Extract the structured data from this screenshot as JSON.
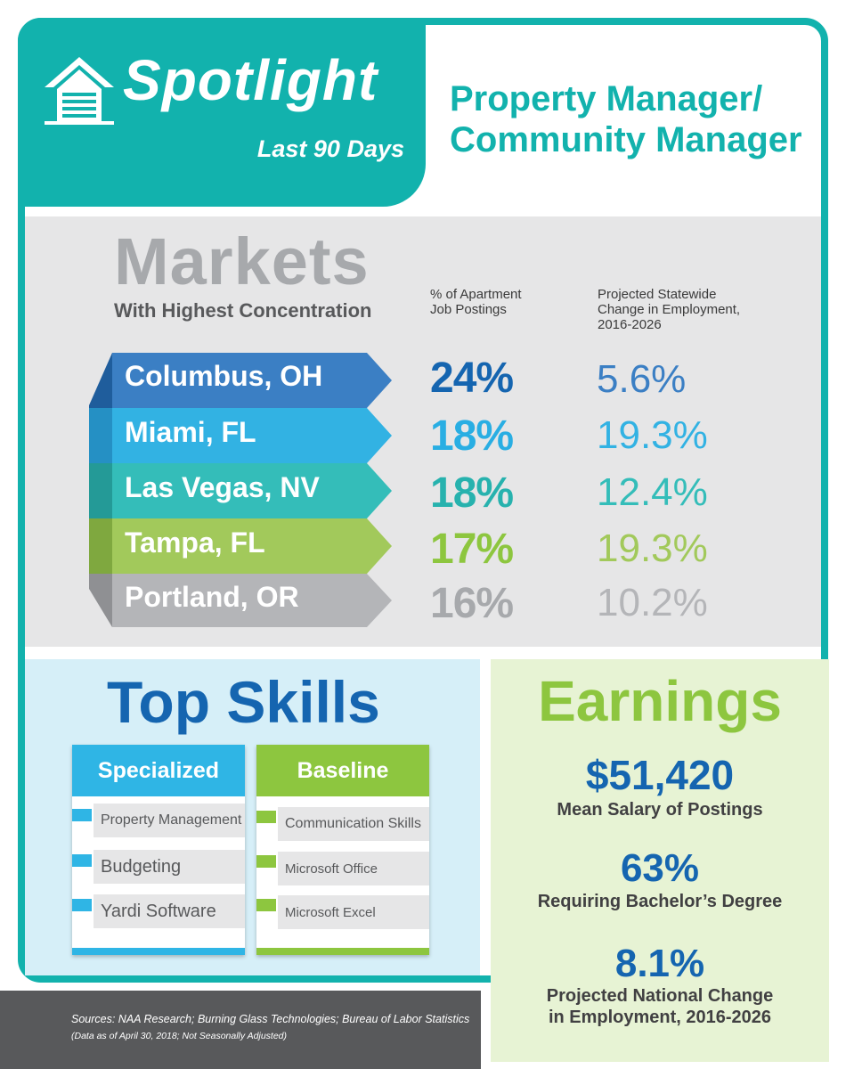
{
  "header": {
    "spotlight": "Spotlight",
    "period": "Last 90 Days",
    "job_title_line1": "Property Manager/",
    "job_title_line2": "Community Manager"
  },
  "markets": {
    "title": "Markets",
    "subtitle": "With Highest Concentration",
    "col_postings": [
      "% of Apartment",
      "Job Postings"
    ],
    "col_change": [
      "Projected Statewide",
      "Change in Employment,",
      "2016-2026"
    ],
    "rows": [
      {
        "city": "Columbus, OH",
        "pct": "24%",
        "change": "5.6%"
      },
      {
        "city": "Miami, FL",
        "pct": "18%",
        "change": "19.3%"
      },
      {
        "city": "Las Vegas, NV",
        "pct": "18%",
        "change": "12.4%"
      },
      {
        "city": "Tampa, FL",
        "pct": "17%",
        "change": "19.3%"
      },
      {
        "city": "Portland, OR",
        "pct": "16%",
        "change": "10.2%"
      }
    ]
  },
  "skills": {
    "title": "Top Skills",
    "specialized": {
      "heading": "Specialized",
      "items": [
        "Property Management",
        "Budgeting",
        "Yardi Software"
      ]
    },
    "baseline": {
      "heading": "Baseline",
      "items": [
        "Communication Skills",
        "Microsoft Office",
        "Microsoft Excel"
      ]
    }
  },
  "earnings": {
    "title": "Earnings",
    "salary": "$51,420",
    "salary_label": "Mean Salary of Postings",
    "degree": "63%",
    "degree_label": "Requiring Bachelor’s Degree",
    "national": "8.1%",
    "national_label_line1": "Projected National Change",
    "national_label_line2": "in Employment, 2016-2026"
  },
  "footer": {
    "sources": "Sources:  NAA Research; Burning Glass Technologies; Bureau of Labor Statistics",
    "note": "(Data as of April 30, 2018; Not Seasonally Adjusted)"
  },
  "colors": {
    "teal": "#12b2ad",
    "blue": "#1565b0",
    "green": "#8dc63f",
    "gray": "#a7a9ac",
    "row_colors": [
      "#3b7fc4",
      "#32b2e3",
      "#34bdb9",
      "#a2c95b",
      "#b4b5b8"
    ]
  },
  "icons": [
    "house-logo-icon"
  ]
}
